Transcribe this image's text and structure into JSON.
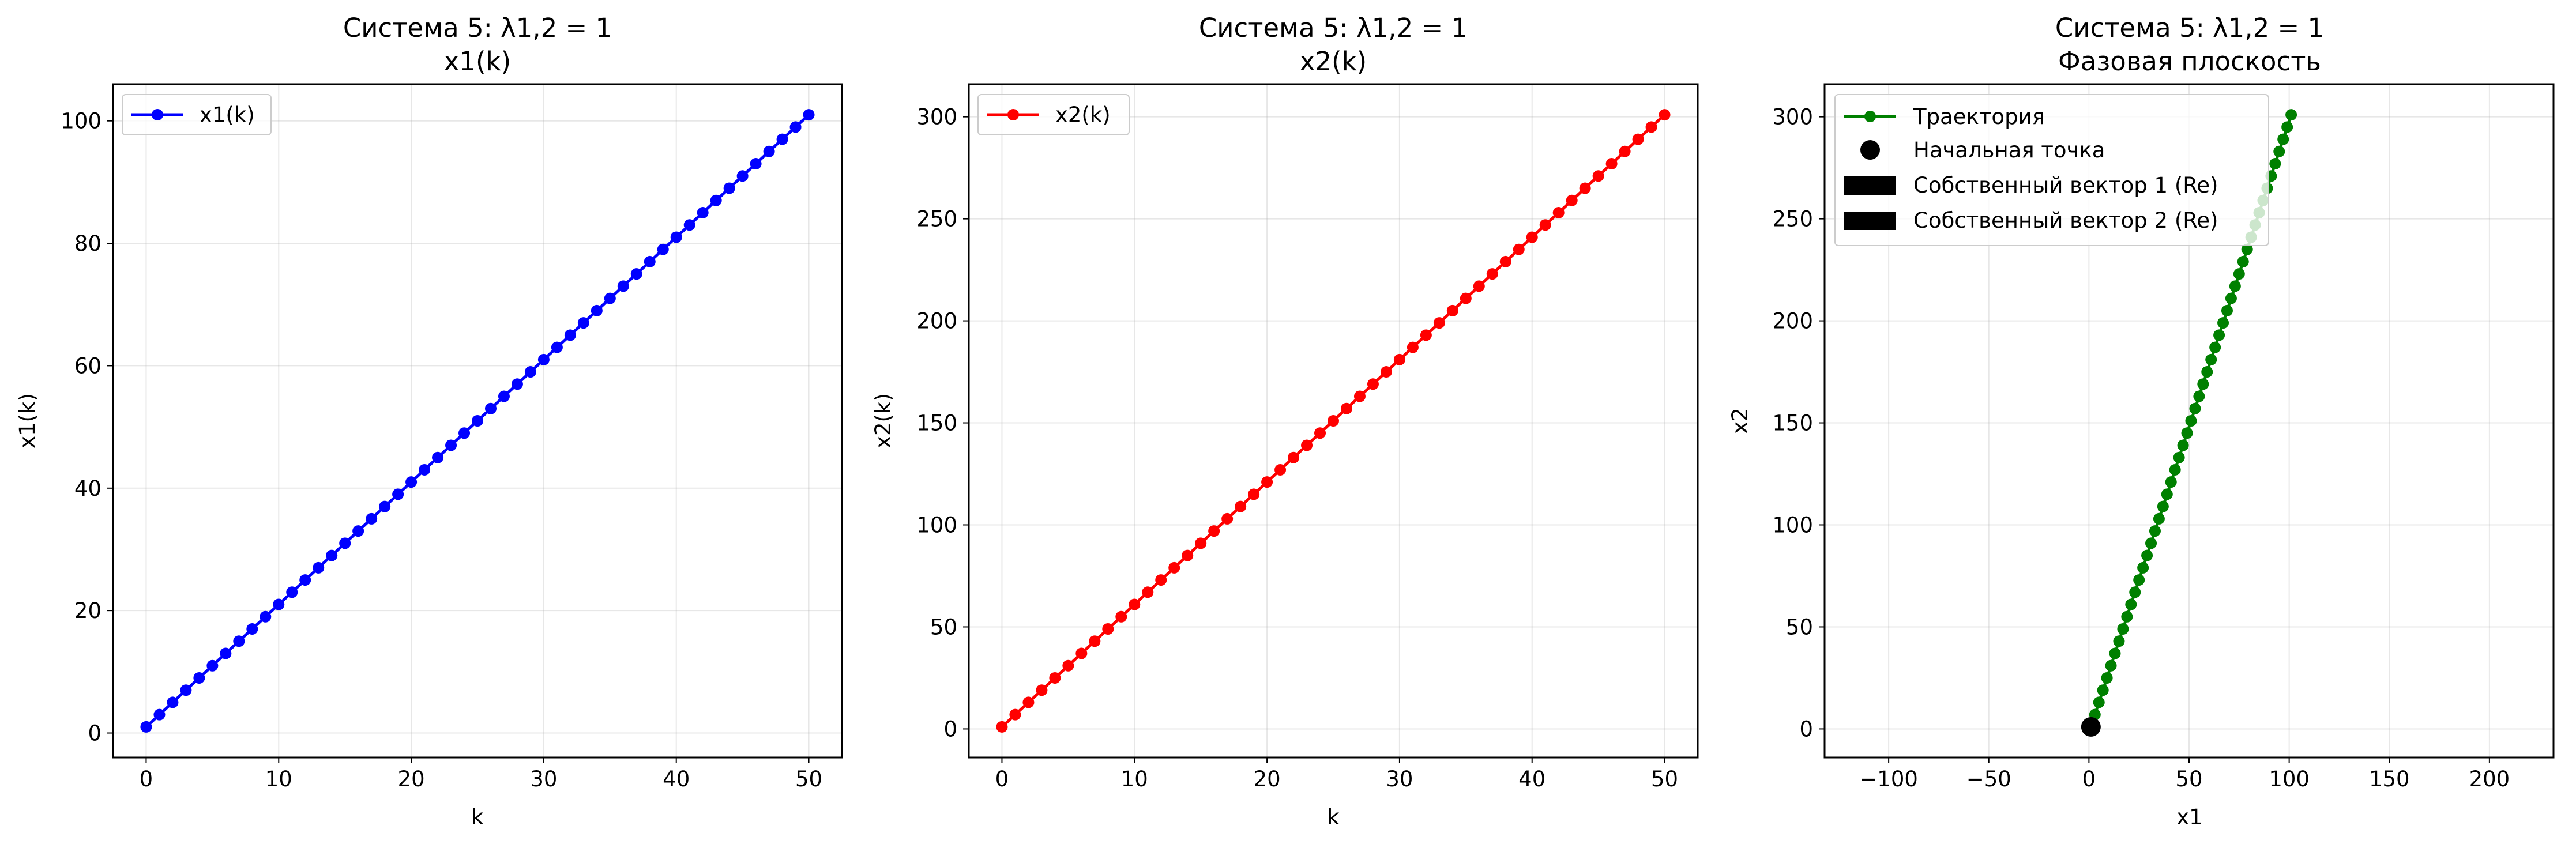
{
  "chart_data": [
    {
      "type": "line",
      "title": "Система 5: λ1,2 = 1",
      "subtitle": "x1(k)",
      "xlabel": "k",
      "ylabel": "x1(k)",
      "xlim": [
        -2.5,
        52.5
      ],
      "ylim": [
        -4,
        106
      ],
      "xticks": [
        0,
        10,
        20,
        30,
        40,
        50
      ],
      "yticks": [
        0,
        20,
        40,
        60,
        80,
        100
      ],
      "grid": true,
      "legend_position": "upper left",
      "series": [
        {
          "name": "x1(k)",
          "color": "#0000ff",
          "marker": "circle",
          "x_start": 0,
          "x_end": 50,
          "x_step": 1,
          "y_start": 1,
          "y_step": 2
        }
      ]
    },
    {
      "type": "line",
      "title": "Система 5: λ1,2 = 1",
      "subtitle": "x2(k)",
      "xlabel": "k",
      "ylabel": "x2(k)",
      "xlim": [
        -2.5,
        52.5
      ],
      "ylim": [
        -14,
        316
      ],
      "xticks": [
        0,
        10,
        20,
        30,
        40,
        50
      ],
      "yticks": [
        0,
        50,
        100,
        150,
        200,
        250,
        300
      ],
      "grid": true,
      "legend_position": "upper left",
      "series": [
        {
          "name": "x2(k)",
          "color": "#ff0000",
          "marker": "circle",
          "x_start": 0,
          "x_end": 50,
          "x_step": 1,
          "y_start": 1,
          "y_step": 6
        }
      ]
    },
    {
      "type": "line",
      "title": "Система 5: λ1,2 = 1",
      "subtitle": "Фазовая плоскость",
      "xlabel": "x1",
      "ylabel": "x2",
      "xlim": [
        -132,
        232
      ],
      "ylim": [
        -14,
        316
      ],
      "xticks": [
        -100,
        -50,
        0,
        50,
        100,
        150,
        200
      ],
      "yticks": [
        0,
        50,
        100,
        150,
        200,
        250,
        300
      ],
      "grid": true,
      "legend_position": "upper left",
      "series": [
        {
          "name": "Траектория",
          "color": "#008000",
          "marker": "circle",
          "k_start": 0,
          "k_end": 50,
          "x1_start": 1,
          "x1_step": 2,
          "x2_start": 1,
          "x2_step": 6
        }
      ],
      "start_point": {
        "name": "Начальная точка",
        "x": 1,
        "y": 1,
        "color": "#000000"
      },
      "eigenvector_legend": [
        {
          "name": "Собственный вектор 1 (Re)",
          "color": "#000000"
        },
        {
          "name": "Собственный вектор 2 (Re)",
          "color": "#000000"
        }
      ]
    }
  ]
}
